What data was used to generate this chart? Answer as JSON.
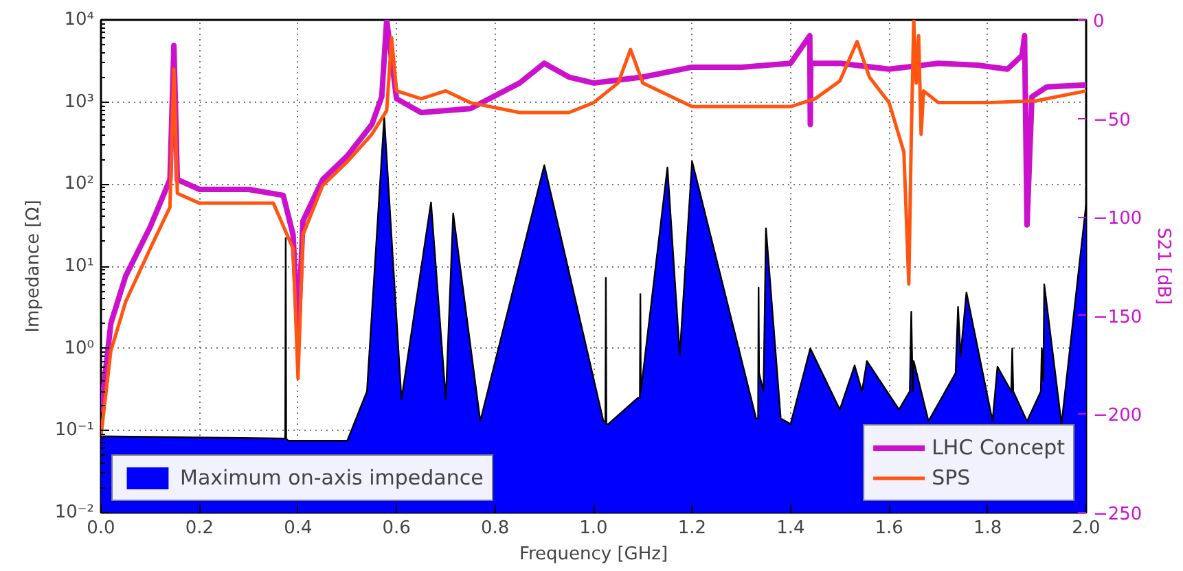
{
  "chart_data": {
    "type": "line",
    "xlabel": "Frequency [GHz]",
    "ylabel": "Impedance [Ω]",
    "y2label": "S21 [dB]",
    "log": "y",
    "grid": true,
    "legend": "bottom",
    "line_style": "solid",
    "xlim": [
      0,
      2
    ],
    "xticks": [
      {
        "value": 0,
        "label": "0.0"
      },
      0.2,
      0.4,
      0.6,
      0.8,
      {
        "value": 1,
        "label": "1.0"
      },
      1.2,
      1.4,
      1.6,
      1.8,
      {
        "value": 2,
        "label": "2.0"
      }
    ],
    "ylim": [
      0.01,
      10000
    ],
    "yticks": [
      {
        "value": 0.01,
        "label": "10⁻²"
      },
      {
        "value": 0.1,
        "label": "10⁻¹"
      },
      {
        "value": 1,
        "label": "10⁰"
      },
      {
        "value": 10,
        "label": "10¹"
      },
      {
        "value": 100,
        "label": "10²"
      },
      {
        "value": 1000,
        "label": "10³"
      },
      {
        "value": 10000,
        "label": "10⁴"
      }
    ],
    "y2lim": [
      -250,
      0
    ],
    "y2ticks": [
      {
        "value": -250,
        "label": "−250"
      },
      {
        "value": -200,
        "label": "−200"
      },
      {
        "value": -150,
        "label": "−150"
      },
      {
        "value": -100,
        "label": "−100"
      },
      {
        "value": -50,
        "label": "−50"
      },
      0
    ],
    "series": [
      {
        "name": "Maximum on-axis impedance",
        "type": "area",
        "color": "#0000ff",
        "x": [
          0,
          0.37,
          0.374,
          0.375,
          0.376,
          0.38,
          0.5,
          0.54,
          0.575,
          0.61,
          0.67,
          0.7,
          0.715,
          0.77,
          0.9,
          1.02,
          1.024,
          1.025,
          1.026,
          1.03,
          1.09,
          1.094,
          1.095,
          1.096,
          1.15,
          1.175,
          1.2,
          1.33,
          1.334,
          1.335,
          1.336,
          1.345,
          1.35,
          1.38,
          1.4,
          1.44,
          1.5,
          1.53,
          1.545,
          1.555,
          1.62,
          1.642,
          1.645,
          1.648,
          1.65,
          1.68,
          1.735,
          1.74,
          1.745,
          1.757,
          1.81,
          1.82,
          1.848,
          1.85,
          1.852,
          1.88,
          1.908,
          1.91,
          1.913,
          1.915,
          1.95,
          2.0
        ],
        "values": [
          0.085,
          0.08,
          0.08,
          22,
          0.08,
          0.075,
          0.075,
          0.3,
          650,
          0.24,
          60,
          0.24,
          44,
          0.13,
          170,
          0.13,
          0.13,
          7.2,
          0.12,
          0.12,
          0.25,
          0.25,
          4.6,
          0.3,
          160,
          0.83,
          190,
          0.14,
          0.14,
          5.5,
          0.5,
          0.3,
          29,
          0.14,
          0.12,
          1.0,
          0.18,
          0.62,
          0.3,
          0.7,
          0.18,
          0.3,
          2.8,
          0.3,
          0.7,
          0.13,
          0.5,
          3.2,
          0.8,
          4.8,
          0.13,
          0.6,
          0.3,
          1.0,
          0.3,
          0.13,
          0.3,
          1.0,
          0.4,
          6,
          0.12,
          57
        ]
      },
      {
        "name": "LHC Concept",
        "axis": "y2",
        "color": "#cc11cc",
        "x": [
          0,
          0.02,
          0.05,
          0.1,
          0.14,
          0.148,
          0.155,
          0.2,
          0.3,
          0.37,
          0.39,
          0.4,
          0.41,
          0.45,
          0.5,
          0.55,
          0.57,
          0.58,
          0.6,
          0.65,
          0.75,
          0.85,
          0.9,
          0.95,
          1.0,
          1.1,
          1.2,
          1.3,
          1.4,
          1.439,
          1.44,
          1.441,
          1.5,
          1.6,
          1.7,
          1.78,
          1.84,
          1.87,
          1.875,
          1.88,
          1.89,
          1.92,
          2.0
        ],
        "values": [
          -199,
          -154,
          -130,
          -105,
          -81,
          -13,
          -81,
          -86,
          -86,
          -89,
          -109,
          -160,
          -102,
          -81,
          -69,
          -53,
          -39,
          0,
          -40,
          -47,
          -45,
          -32,
          -22,
          -29,
          -32,
          -29,
          -24,
          -24,
          -22,
          -8,
          -53,
          -22,
          -22,
          -25,
          -22,
          -23,
          -25,
          -18,
          -8,
          -104,
          -39,
          -34,
          -33
        ]
      },
      {
        "name": "SPS",
        "axis": "y2",
        "color": "#ff5511",
        "x": [
          0,
          0.02,
          0.05,
          0.1,
          0.14,
          0.148,
          0.155,
          0.2,
          0.35,
          0.39,
          0.4,
          0.41,
          0.45,
          0.5,
          0.55,
          0.58,
          0.59,
          0.6,
          0.65,
          0.7,
          0.75,
          0.85,
          0.95,
          1.0,
          1.05,
          1.075,
          1.1,
          1.2,
          1.4,
          1.45,
          1.5,
          1.535,
          1.56,
          1.6,
          1.63,
          1.64,
          1.645,
          1.65,
          1.655,
          1.66,
          1.665,
          1.67,
          1.7,
          1.8,
          1.9,
          2.0
        ],
        "values": [
          -211,
          -168,
          -143,
          -116,
          -95,
          -25,
          -88,
          -93,
          -93,
          -116,
          -182,
          -109,
          -84,
          -72,
          -58,
          -46,
          -9,
          -36,
          -40,
          -36,
          -42,
          -47,
          -47,
          -42,
          -32,
          -15,
          -32,
          -44,
          -44,
          -40,
          -31,
          -11,
          -29,
          -42,
          -67,
          -134,
          -60,
          0,
          -32,
          -8,
          -58,
          -36,
          -42,
          -42,
          -41,
          -36
        ]
      }
    ]
  }
}
